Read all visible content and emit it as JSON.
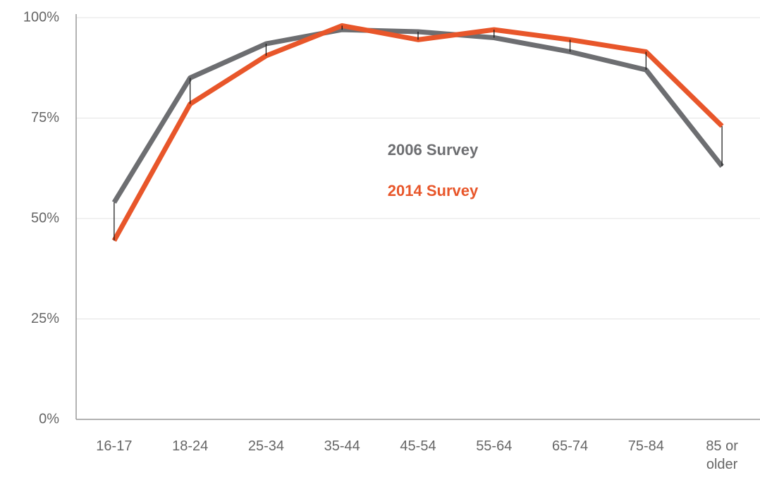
{
  "chart_data": {
    "type": "line",
    "categories": [
      "16-17",
      "18-24",
      "25-34",
      "35-44",
      "45-54",
      "55-64",
      "65-74",
      "75-84",
      "85 or older"
    ],
    "series": [
      {
        "name": "2006 Survey",
        "color": "#6d6e71",
        "values": [
          54,
          85,
          93.5,
          97,
          96.5,
          95,
          91.5,
          87,
          63
        ]
      },
      {
        "name": "2014 Survey",
        "color": "#e8562a",
        "values": [
          44.5,
          78.5,
          90.5,
          98,
          94.5,
          97,
          94.5,
          91.5,
          73
        ]
      }
    ],
    "ylim": [
      0,
      100
    ],
    "yticks": [
      {
        "value": 0,
        "label": "0%"
      },
      {
        "value": 25,
        "label": "25%"
      },
      {
        "value": 50,
        "label": "50%"
      },
      {
        "value": 75,
        "label": "75%"
      },
      {
        "value": 100,
        "label": "100%"
      }
    ],
    "grid": true
  }
}
